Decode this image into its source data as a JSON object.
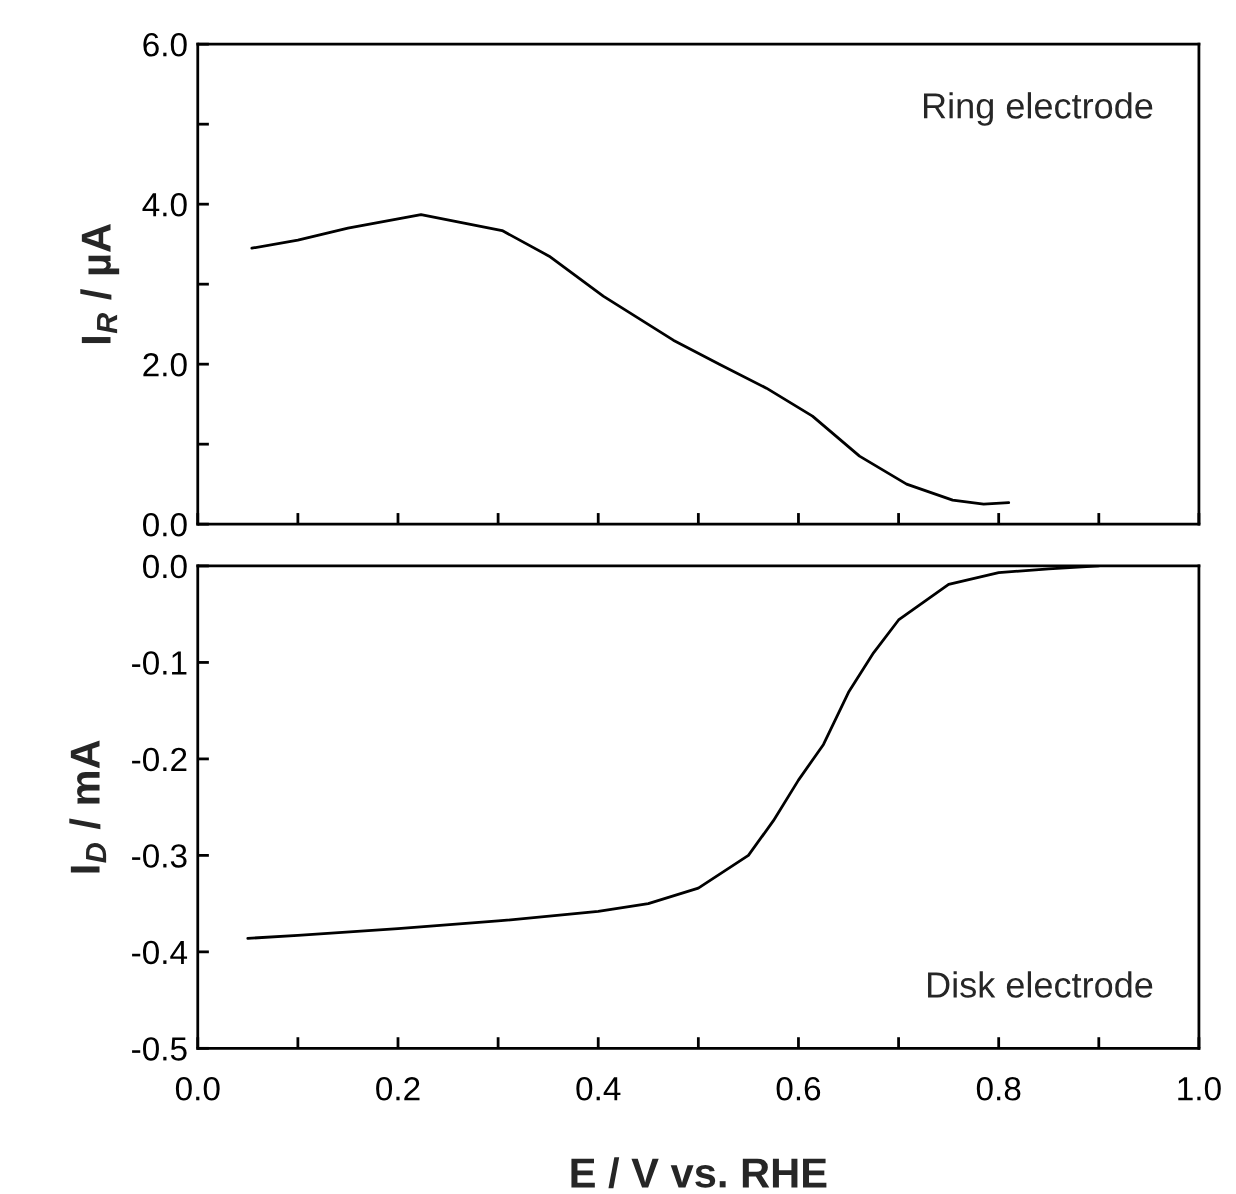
{
  "chart_data": [
    {
      "type": "line",
      "ylabel": "I$_{R}$ / µA",
      "annotations": [
        "Ring electrode"
      ],
      "tick_labels": "y",
      "grid": false,
      "legend": false,
      "x": [
        0.054,
        0.1,
        0.15,
        0.223,
        0.304,
        0.351,
        0.405,
        0.475,
        0.521,
        0.568,
        0.614,
        0.661,
        0.708,
        0.754,
        0.785,
        0.81
      ],
      "series": [
        {
          "color": "#000000",
          "values": [
            3.45,
            3.55,
            3.7,
            3.87,
            3.67,
            3.35,
            2.85,
            2.3,
            2.0,
            1.7,
            1.35,
            0.85,
            0.5,
            0.3,
            0.25,
            0.27
          ]
        }
      ],
      "xlim": [
        0.0,
        1.0
      ],
      "xticks": [
        {
          "value": 0,
          "label": null
        },
        {
          "value": 0.1,
          "label": null
        },
        {
          "value": 0.2,
          "label": null
        },
        {
          "value": 0.3,
          "label": null
        },
        {
          "value": 0.4,
          "label": null
        },
        {
          "value": 0.5,
          "label": null
        },
        {
          "value": 0.6,
          "label": null
        },
        {
          "value": 0.7,
          "label": null
        },
        {
          "value": 0.8,
          "label": null
        },
        {
          "value": 0.9,
          "label": null
        },
        {
          "value": 1.0,
          "label": null
        }
      ],
      "ylim": [
        0.0,
        6.0
      ],
      "yticks": [
        {
          "value": 0,
          "label": "0.0"
        },
        {
          "value": 1,
          "label": null
        },
        {
          "value": 2,
          "label": "2.0"
        },
        {
          "value": 3,
          "label": null
        },
        {
          "value": 4,
          "label": "4.0"
        },
        {
          "value": 5,
          "label": null
        },
        {
          "value": 6,
          "label": "6.0"
        }
      ]
    },
    {
      "type": "line",
      "xlabel": "E / V vs. RHE",
      "ylabel": "I$_{D}$ / mA",
      "annotations": [
        "Disk electrode"
      ],
      "grid": false,
      "legend": false,
      "x": [
        0.05,
        0.1,
        0.2,
        0.3,
        0.4,
        0.45,
        0.5,
        0.55,
        0.575,
        0.6,
        0.625,
        0.65,
        0.675,
        0.7,
        0.75,
        0.8,
        0.85,
        0.9
      ],
      "series": [
        {
          "color": "#000000",
          "values": [
            -0.386,
            -0.383,
            -0.376,
            -0.368,
            -0.358,
            -0.35,
            -0.334,
            -0.3,
            -0.264,
            -0.222,
            -0.185,
            -0.131,
            -0.09,
            -0.056,
            -0.019,
            -0.007,
            -0.003,
            0.0
          ]
        }
      ],
      "xlim": [
        0.0,
        1.0
      ],
      "xticks": [
        {
          "value": 0,
          "label": "0.0"
        },
        {
          "value": 0.1,
          "label": null
        },
        {
          "value": 0.2,
          "label": "0.2"
        },
        {
          "value": 0.3,
          "label": null
        },
        {
          "value": 0.4,
          "label": "0.4"
        },
        {
          "value": 0.5,
          "label": null
        },
        {
          "value": 0.6,
          "label": "0.6"
        },
        {
          "value": 0.7,
          "label": null
        },
        {
          "value": 0.8,
          "label": "0.8"
        },
        {
          "value": 0.9,
          "label": null
        },
        {
          "value": 1.0,
          "label": "1.0"
        }
      ],
      "ylim": [
        -0.5,
        0.0
      ],
      "yticks": [
        {
          "value": -0.5,
          "label": "-0.5"
        },
        {
          "value": -0.4,
          "label": "-0.4"
        },
        {
          "value": -0.3,
          "label": "-0.3"
        },
        {
          "value": -0.2,
          "label": "-0.2"
        },
        {
          "value": -0.1,
          "label": "-0.1"
        },
        {
          "value": 0.0,
          "label": "0.0"
        }
      ]
    }
  ]
}
